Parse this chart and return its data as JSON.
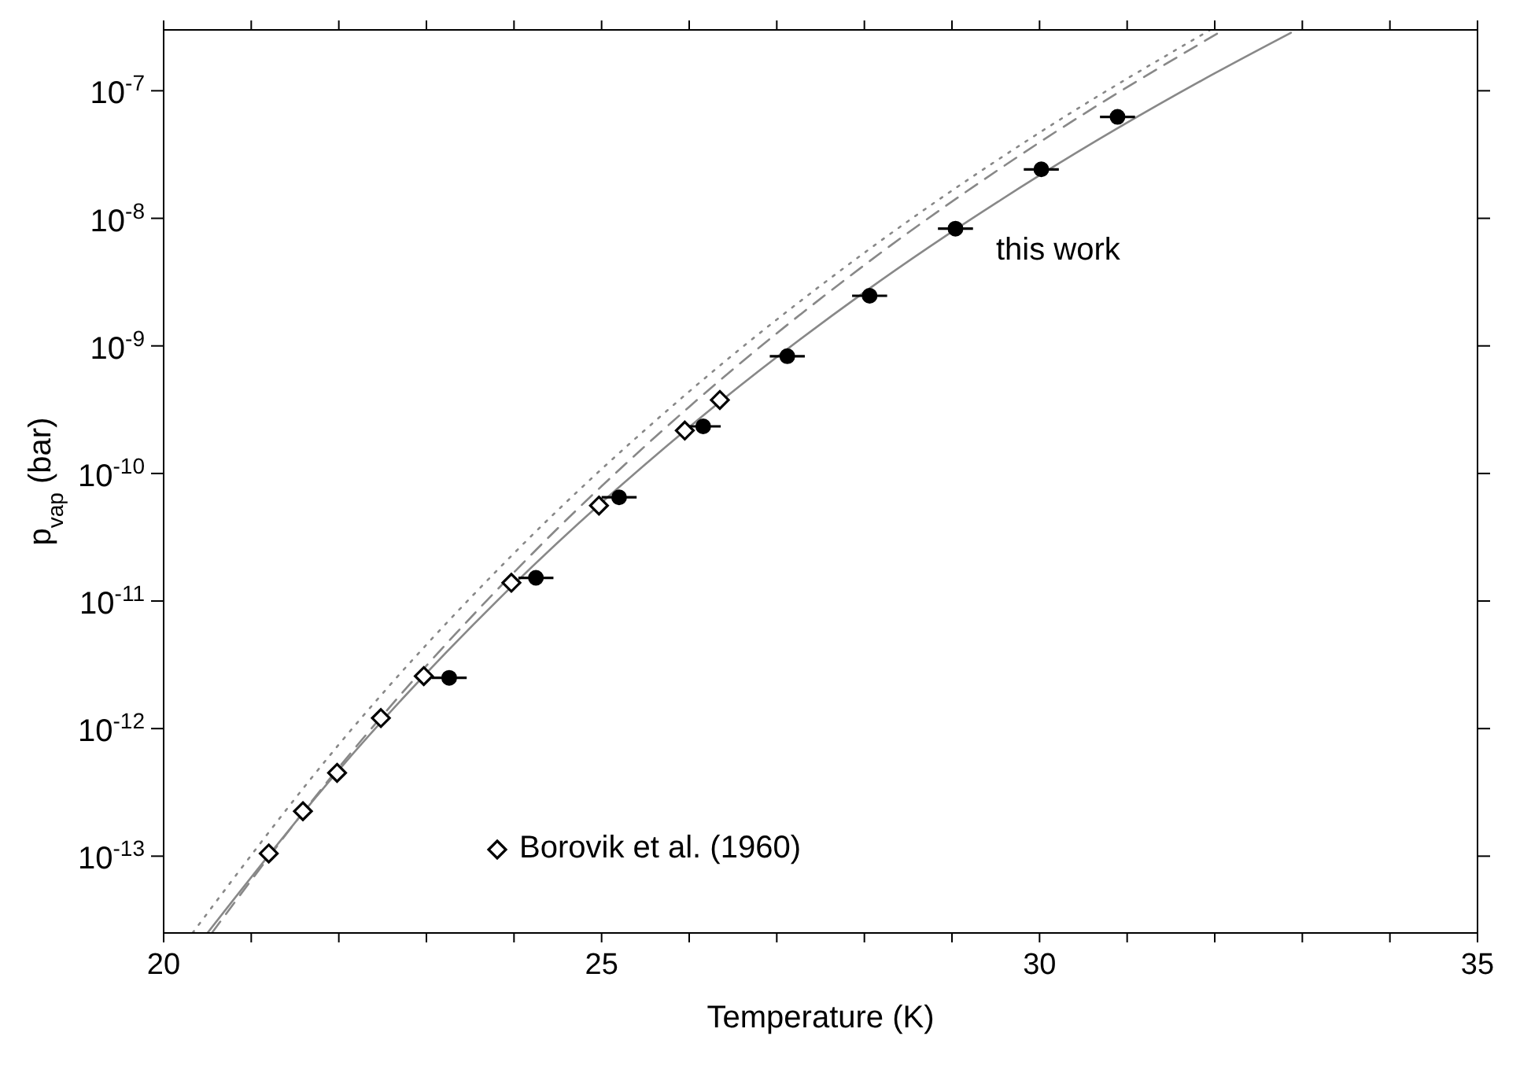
{
  "chart_data": {
    "type": "scatter",
    "xlabel": "Temperature (K)",
    "ylabel": "p$_{vap}$ (bar)",
    "log": "y",
    "legend": "bottom",
    "xlim": [
      20,
      35
    ],
    "xticks": [
      20,
      {
        "value": 21,
        "label": null
      },
      {
        "value": 22,
        "label": null
      },
      {
        "value": 23,
        "label": null
      },
      {
        "value": 24,
        "label": null
      },
      25,
      {
        "value": 26,
        "label": null
      },
      {
        "value": 27,
        "label": null
      },
      {
        "value": 28,
        "label": null
      },
      {
        "value": 29,
        "label": null
      },
      30,
      {
        "value": 31,
        "label": null
      },
      {
        "value": 32,
        "label": null
      },
      {
        "value": 33,
        "label": null
      },
      {
        "value": 34,
        "label": null
      },
      35
    ],
    "ylim": [
      2.5e-14,
      3e-07
    ],
    "yticks": [
      {
        "value": 1e-13,
        "label": "10$^{-13}$"
      },
      {
        "value": 1e-12,
        "label": "10$^{-12}$"
      },
      {
        "value": 1e-11,
        "label": "10$^{-11}$"
      },
      {
        "value": 1e-10,
        "label": "10$^{-10}$"
      },
      {
        "value": 1e-09,
        "label": "10$^{-9}$"
      },
      {
        "value": 1e-08,
        "label": "10$^{-8}$"
      },
      {
        "value": 1e-07,
        "label": "10$^{-7}$"
      }
    ],
    "annotations": [
      "this work"
    ],
    "series": [
      {
        "type": "line",
        "color": "#888888",
        "line_style": "dotted",
        "x": [
          20.33,
          22,
          24,
          26,
          28,
          30,
          31.95
        ],
        "values": [
          2.5e-14,
          7.5e-13,
          2.37e-11,
          4.39e-10,
          5.37e-09,
          4.7e-08,
          3e-07
        ]
      },
      {
        "type": "line",
        "color": "#888888",
        "line_style": "dashed",
        "x": [
          20.55,
          22,
          24,
          26,
          28,
          30,
          32.1
        ],
        "values": [
          2.5e-14,
          4.95e-13,
          1.68e-11,
          3.33e-10,
          4.3e-09,
          3.94e-08,
          3e-07
        ]
      },
      {
        "type": "line",
        "color": "#888888",
        "line_style": "solid",
        "x": [
          20.5,
          22,
          24,
          26,
          28,
          30,
          32,
          32.87
        ],
        "values": [
          2.5e-14,
          4.74e-13,
          1.355e-11,
          2.31e-10,
          2.64e-09,
          2.17e-08,
          1.37e-07,
          2.85e-07
        ]
      },
      {
        "name": "Borovik et al. (1960)",
        "color": "#000000",
        "marker": "diamond",
        "x": [
          21.2,
          21.59,
          21.98,
          22.48,
          22.97,
          23.97,
          24.97,
          25.95,
          26.35
        ],
        "values": [
          1.05e-13,
          2.25e-13,
          4.5e-13,
          1.21e-12,
          2.58e-12,
          1.39e-11,
          5.6e-11,
          2.17e-10,
          3.77e-10
        ]
      },
      {
        "color": "#000000",
        "marker": "circle",
        "x": [
          23.26,
          24.25,
          25.2,
          26.16,
          27.12,
          28.06,
          29.04,
          30.02,
          30.89
        ],
        "values": [
          2.5e-12,
          1.52e-11,
          6.5e-11,
          2.34e-10,
          8.3e-10,
          2.47e-09,
          8.3e-09,
          2.42e-08,
          6.24e-08
        ],
        "xerrors": [
          0.2,
          0.2,
          0.2,
          0.2,
          0.2,
          0.2,
          0.2,
          0.2,
          0.2
        ]
      }
    ]
  }
}
